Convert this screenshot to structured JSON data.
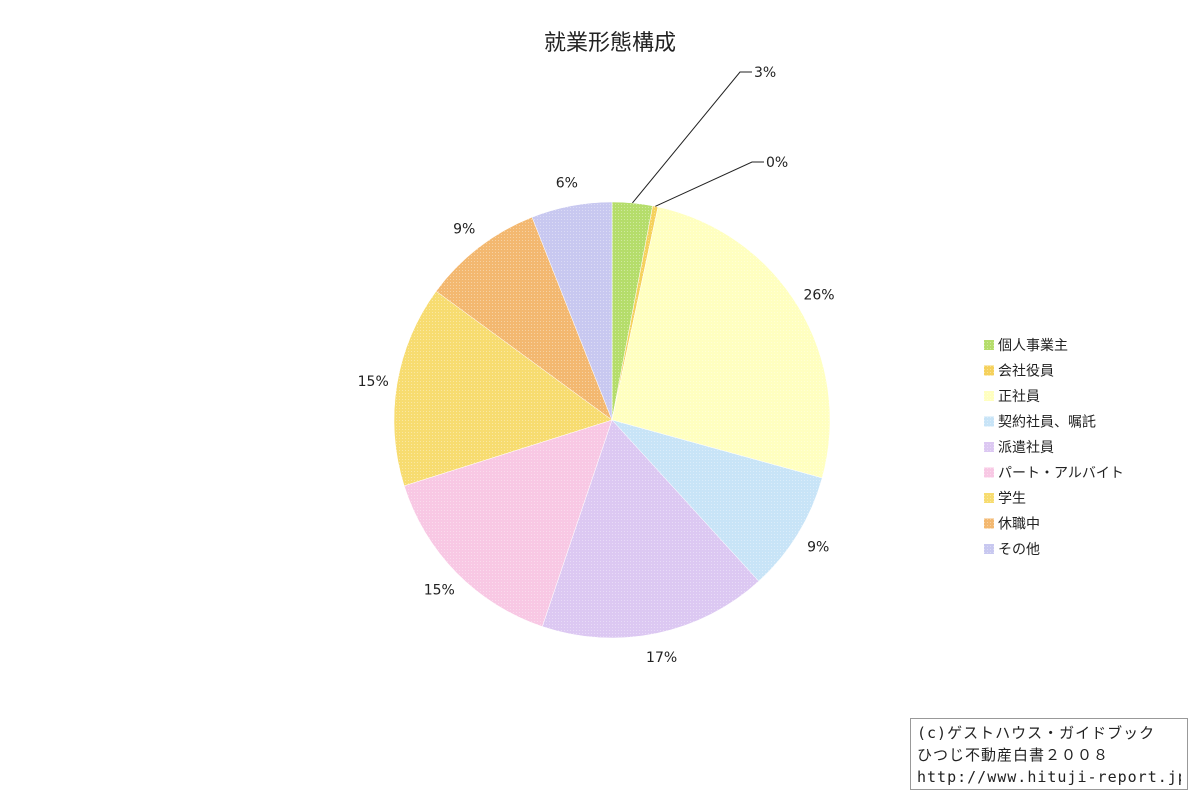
{
  "chart_data": {
    "type": "pie",
    "title": "就業形態構成",
    "legend_position": "right",
    "slices": [
      {
        "label": "個人事業主",
        "value": 3,
        "display": "3%",
        "color": "#b5dd6b"
      },
      {
        "label": "会社役員",
        "value": 0.4,
        "display": "0%",
        "color": "#f5d15c"
      },
      {
        "label": "正社員",
        "value": 26,
        "display": "26%",
        "color": "#ffffc0"
      },
      {
        "label": "契約社員、嘱託",
        "value": 9,
        "display": "9%",
        "color": "#c8e4f7"
      },
      {
        "label": "派遣社員",
        "value": 17,
        "display": "17%",
        "color": "#dcc8f2"
      },
      {
        "label": "パート・アルバイト",
        "value": 15,
        "display": "15%",
        "color": "#f8c8e4"
      },
      {
        "label": "学生",
        "value": 15,
        "display": "15%",
        "color": "#f7dc70"
      },
      {
        "label": "休職中",
        "value": 9,
        "display": "9%",
        "color": "#f3b870"
      },
      {
        "label": "その他",
        "value": 6,
        "display": "6%",
        "color": "#c8c8f0"
      }
    ]
  },
  "credit": {
    "line1": "(c)ゲストハウス・ガイドブック",
    "line2": "ひつじ不動産白書２００８",
    "line3": "http://www.hituji-report.jp/"
  }
}
